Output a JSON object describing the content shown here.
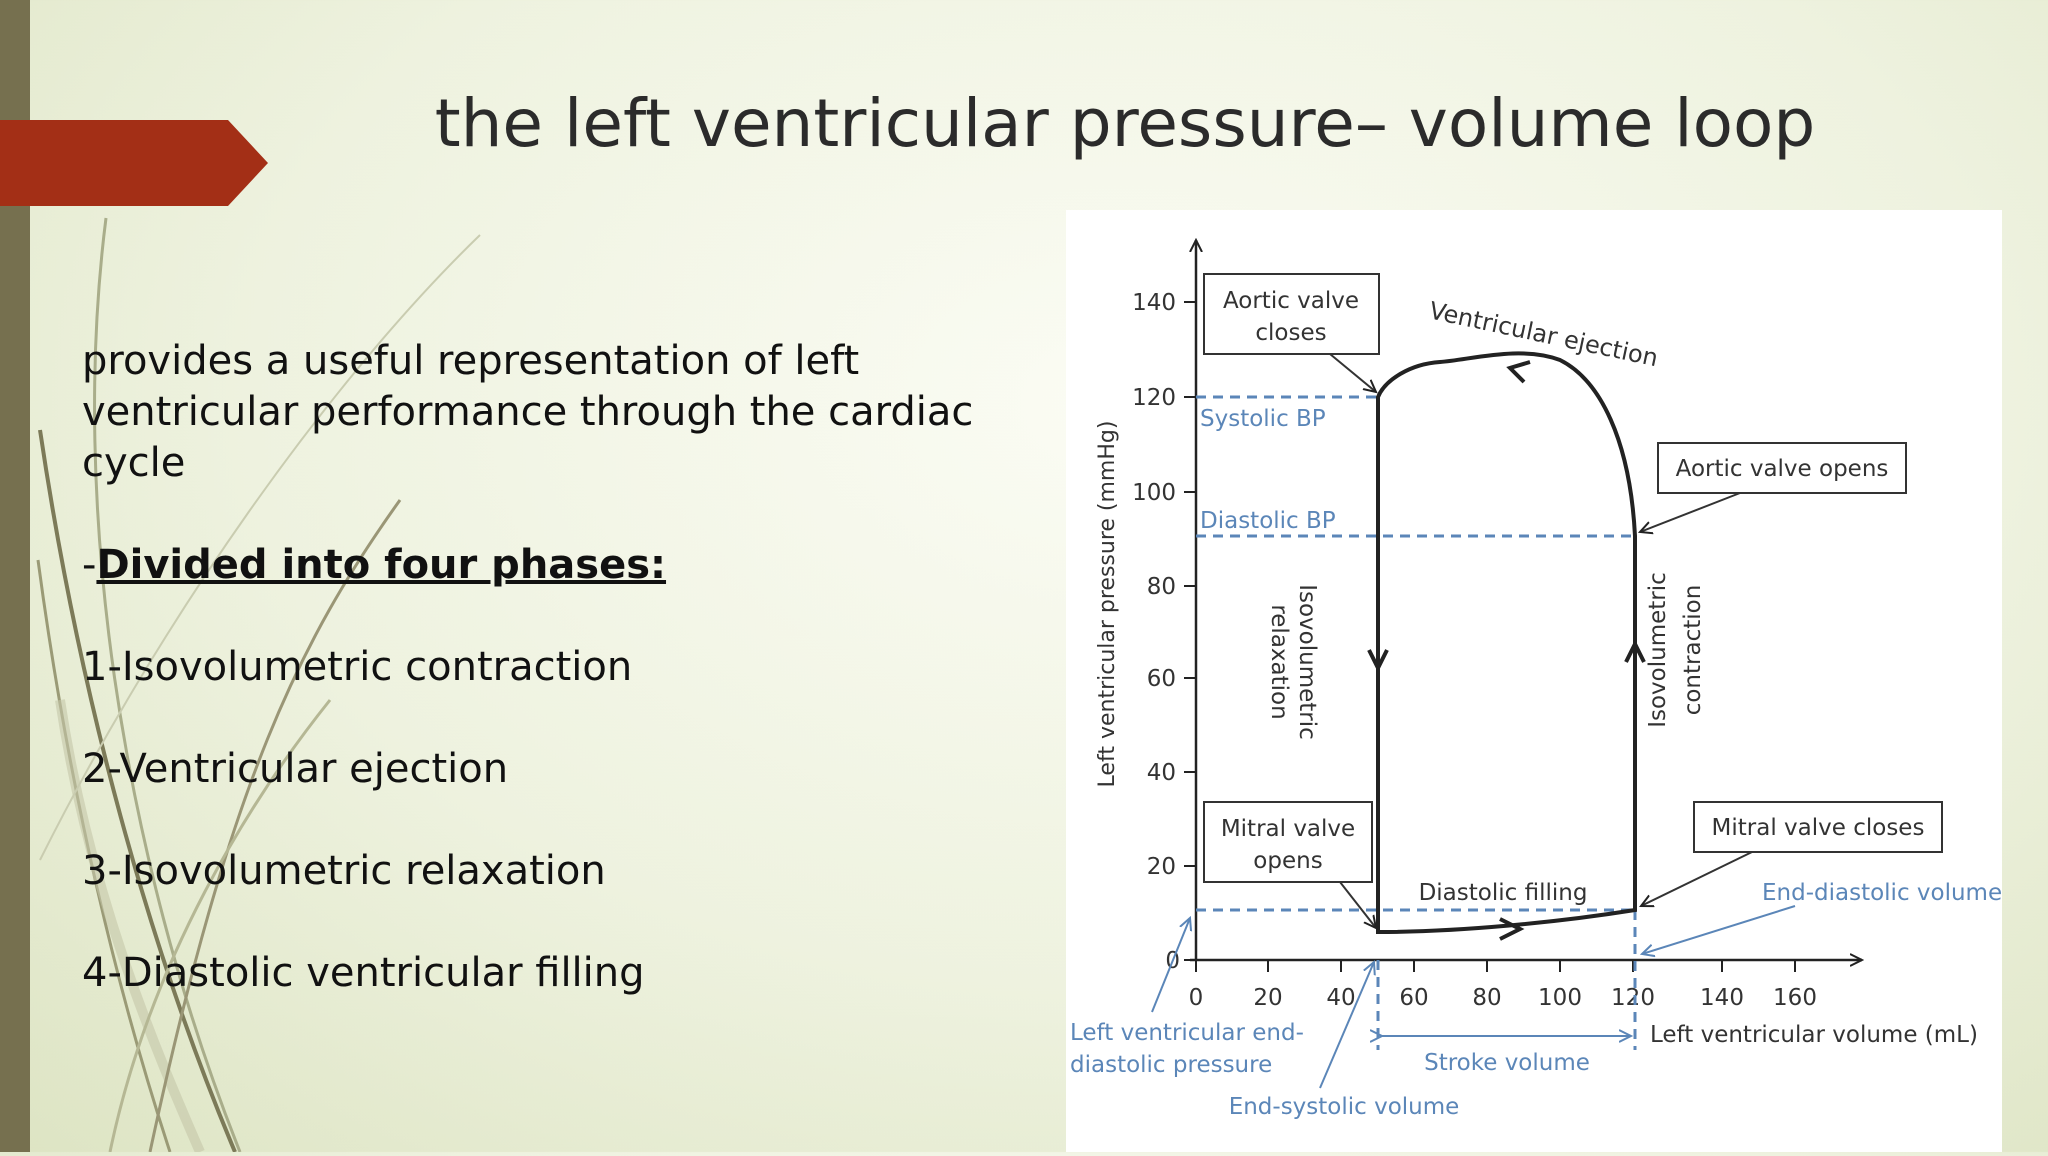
{
  "slide": {
    "title": "the left ventricular pressure– volume loop",
    "intro": "provides a useful representation of left ventricular performance through the cardiac cycle",
    "heading_prefix": "-",
    "heading": "Divided into four phases:",
    "phases": [
      "1-Isovolumetric contraction",
      "2-Ventricular ejection",
      "3-Isovolumetric relaxation",
      "4-Diastolic ventricular filling"
    ]
  },
  "colors": {
    "accent_arrow": "#a32f16",
    "side_bar": "#76704f",
    "annotation_blue": "#5b86b8"
  },
  "diagram": {
    "y_axis_label": "Left ventricular pressure (mmHg)",
    "x_axis_label": "Left ventricular volume (mL)",
    "y_ticks": [
      "0",
      "20",
      "40",
      "60",
      "80",
      "100",
      "120",
      "140"
    ],
    "x_ticks": [
      "0",
      "20",
      "40",
      "60",
      "80",
      "100",
      "120",
      "140",
      "160"
    ],
    "boxes": {
      "aortic_closes": [
        "Aortic valve",
        "closes"
      ],
      "aortic_opens": "Aortic valve opens",
      "mitral_opens": [
        "Mitral valve",
        "opens"
      ],
      "mitral_closes": "Mitral valve closes"
    },
    "labels": {
      "ventricular_ejection": "Ventricular ejection",
      "systolic_bp": "Systolic BP",
      "diastolic_bp": "Diastolic BP",
      "isovolumetric_relaxation": [
        "Isovolumetric",
        "relaxation"
      ],
      "isovolumetric_contraction": [
        "Isovolumetric",
        "contraction"
      ],
      "diastolic_filling": "Diastolic filling",
      "end_diastolic_volume": "End-diastolic volume",
      "lved_pressure": [
        "Left ventricular end-",
        "diastolic pressure"
      ],
      "stroke_volume": "Stroke volume",
      "end_systolic_volume": "End-systolic volume"
    }
  }
}
